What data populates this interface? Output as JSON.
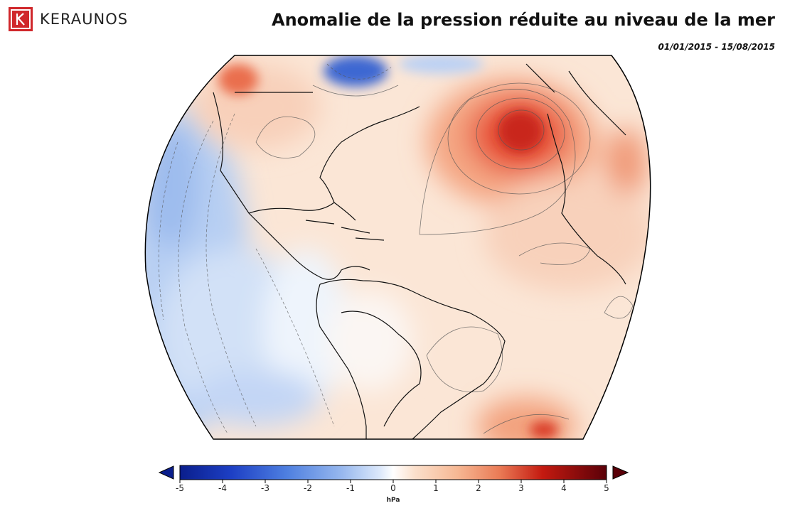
{
  "header": {
    "brand": "KERAUNOS",
    "title": "Anomalie de la pression réduite au niveau de la mer",
    "date_range": "01/01/2015 - 15/08/2015"
  },
  "map": {
    "variable": "sea-level pressure anomaly",
    "region": "Atlantic / Americas orthographic view",
    "colors": {
      "negative_dark": "#0a1e8c",
      "negative_mid": "#4e7fe0",
      "negative_light": "#cfe0f8",
      "neutral": "#ffffff",
      "positive_light": "#fbe0cc",
      "positive_mid": "#f0906a",
      "positive_dark": "#c41a10",
      "positive_max": "#5a0008"
    }
  },
  "colorbar": {
    "min": -5,
    "max": 5,
    "ticks": [
      "-5",
      "-4",
      "-3",
      "-2",
      "-1",
      "0",
      "1",
      "2",
      "3",
      "4",
      "5"
    ],
    "unit": "hPa"
  }
}
